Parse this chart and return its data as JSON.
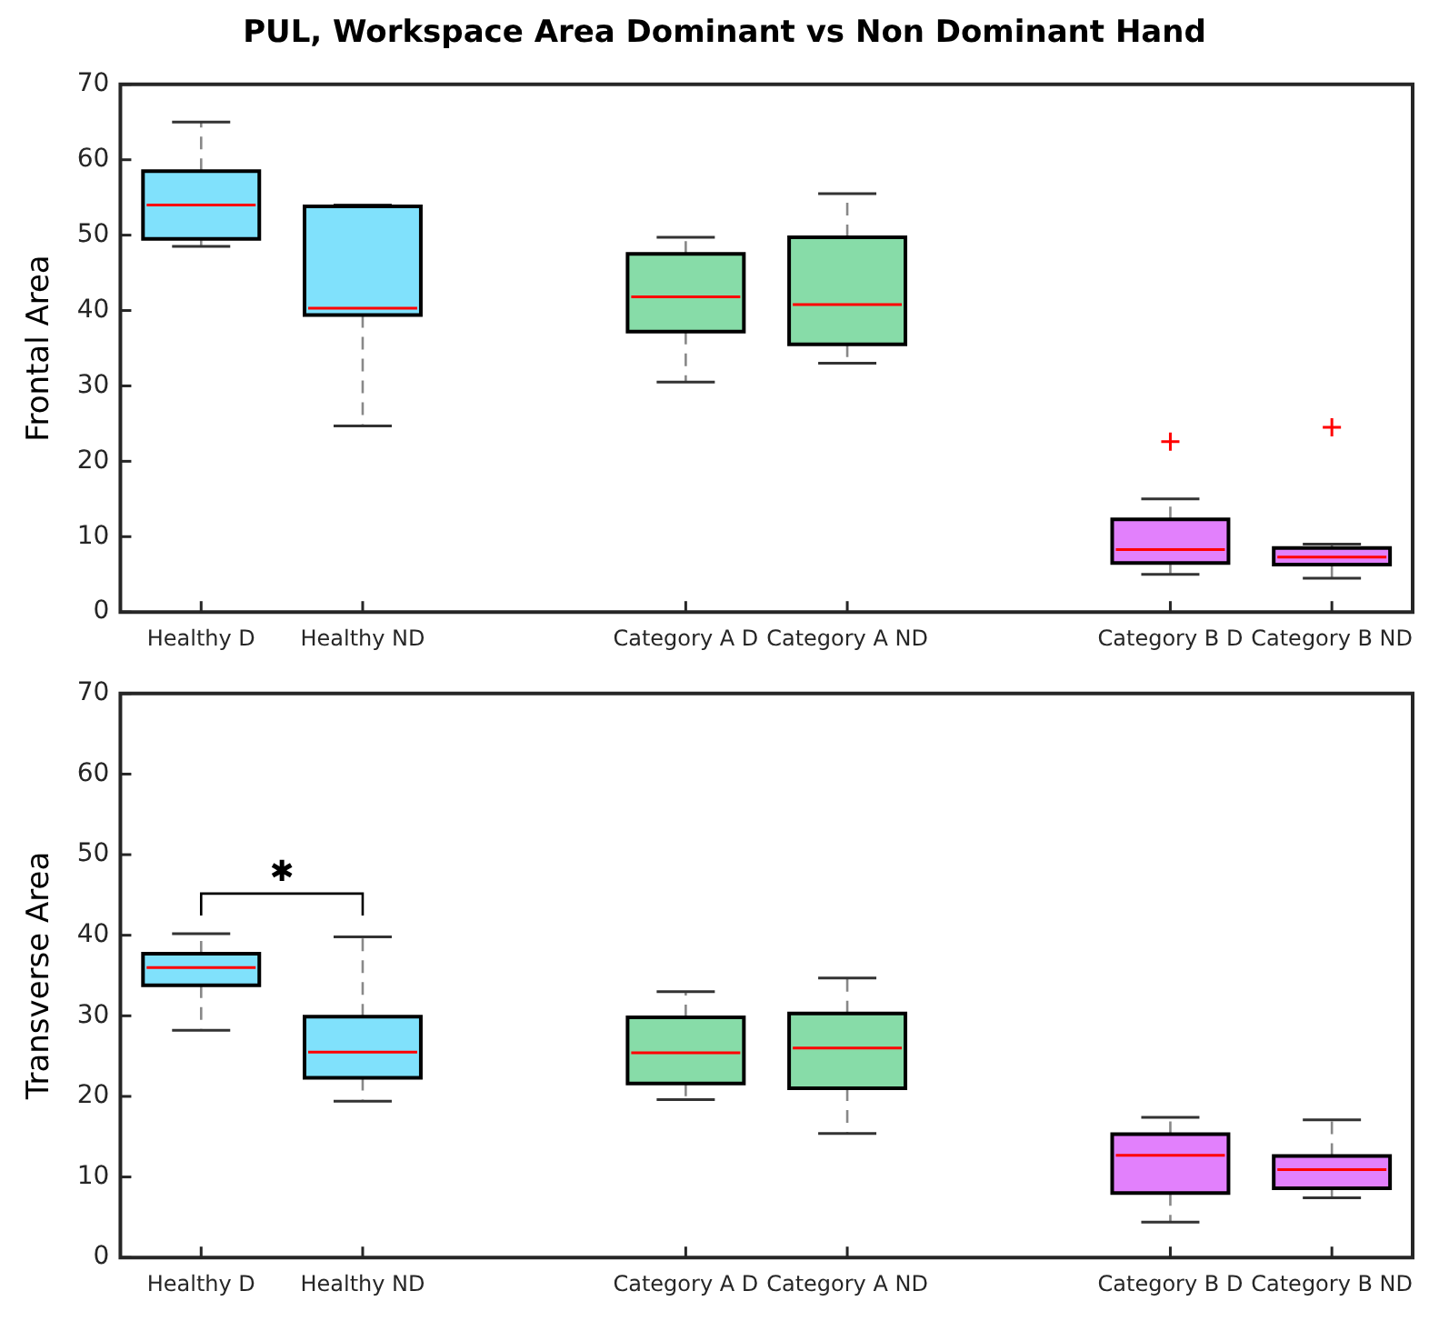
{
  "chart_data": [
    {
      "type": "box",
      "title": "PUL, Workspace Area Dominant vs Non Dominant Hand",
      "ylabel": "Frontal Area",
      "categories": [
        "Healthy D",
        "Healthy ND",
        null,
        "Category A D",
        "Category A ND",
        null,
        "Category B D",
        "Category B ND"
      ],
      "colors": [
        "#80e1fc",
        "#80e1fc",
        null,
        "#87dca8",
        "#87dca8",
        null,
        "#e280fc",
        "#e280fc"
      ],
      "boxes": [
        {
          "low": 48.5,
          "q1": 49.5,
          "median": 54,
          "q3": 58.5,
          "high": 65
        },
        {
          "low": 24.7,
          "q1": 39.4,
          "median": 40.3,
          "q3": 53.8,
          "high": 54
        },
        null,
        {
          "low": 30.5,
          "q1": 37.2,
          "median": 41.8,
          "q3": 47.5,
          "high": 49.7
        },
        {
          "low": 33,
          "q1": 35.5,
          "median": 40.8,
          "q3": 49.7,
          "high": 55.5
        },
        null,
        {
          "low": 5,
          "q1": 6.5,
          "median": 8.3,
          "q3": 12.3,
          "high": 15,
          "outliers": [
            22.6
          ]
        },
        {
          "low": 4.5,
          "q1": 6.3,
          "median": 7.3,
          "q3": 8.5,
          "high": 9,
          "outliers": [
            24.5
          ]
        }
      ],
      "ylim": [
        0,
        70
      ],
      "yticks": [
        0,
        10,
        20,
        30,
        40,
        50,
        60,
        70
      ]
    },
    {
      "type": "box",
      "ylabel": "Transverse Area",
      "annotations": [
        "✱"
      ],
      "categories": [
        "Healthy D",
        "Healthy ND",
        null,
        "Category A D",
        "Category A ND",
        null,
        "Category B D",
        "Category B ND"
      ],
      "colors": [
        "#80e1fc",
        "#80e1fc",
        null,
        "#87dca8",
        "#87dca8",
        null,
        "#e280fc",
        "#e280fc"
      ],
      "boxes": [
        {
          "low": 28.2,
          "q1": 33.8,
          "median": 36,
          "q3": 37.7,
          "high": 40.2
        },
        {
          "low": 19.4,
          "q1": 22.3,
          "median": 25.5,
          "q3": 29.9,
          "high": 39.8
        },
        null,
        {
          "low": 19.6,
          "q1": 21.6,
          "median": 25.4,
          "q3": 29.8,
          "high": 33
        },
        {
          "low": 15.4,
          "q1": 21,
          "median": 26,
          "q3": 30.3,
          "high": 34.7
        },
        null,
        {
          "low": 4.4,
          "q1": 8,
          "median": 12.7,
          "q3": 15.3,
          "high": 17.4
        },
        {
          "low": 7.4,
          "q1": 8.6,
          "median": 10.9,
          "q3": 12.6,
          "high": 17.1
        }
      ],
      "ylim": [
        0,
        70
      ],
      "yticks": [
        0,
        10,
        20,
        30,
        40,
        50,
        60,
        70
      ]
    }
  ]
}
